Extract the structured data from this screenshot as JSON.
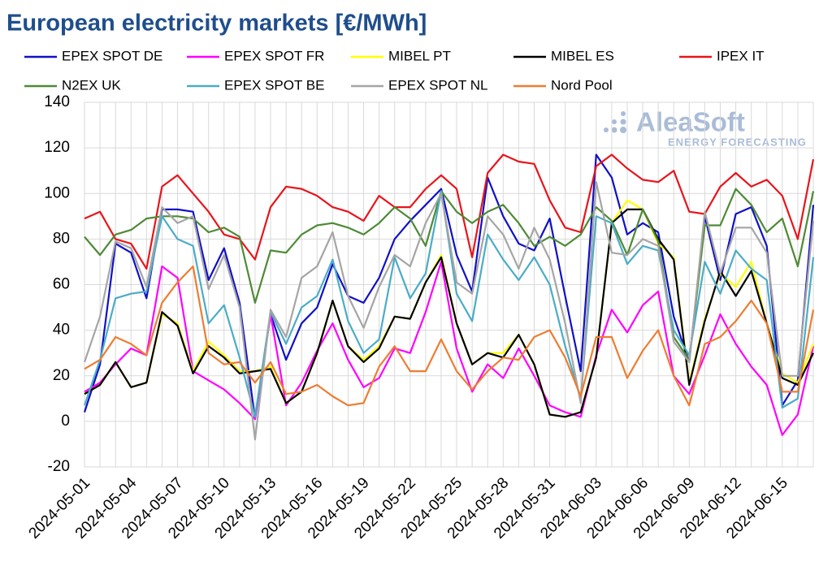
{
  "chart_data": {
    "type": "line",
    "title": "European electricity markets [€/MWh]",
    "watermark": "AleaSoft",
    "watermark_sub": "ENERGY FORECASTING",
    "categories": [
      "2024-05-01",
      null,
      null,
      "2024-05-04",
      null,
      null,
      "2024-05-07",
      null,
      null,
      "2024-05-10",
      null,
      null,
      "2024-05-13",
      null,
      null,
      "2024-05-16",
      null,
      null,
      "2024-05-19",
      null,
      null,
      "2024-05-22",
      null,
      null,
      "2024-05-25",
      null,
      null,
      "2024-05-28",
      null,
      null,
      "2024-05-31",
      null,
      null,
      "2024-06-03",
      null,
      null,
      "2024-06-06",
      null,
      null,
      "2024-06-09",
      null,
      null,
      "2024-06-12",
      null,
      null,
      "2024-06-15",
      null,
      null
    ],
    "ylim": [
      -20,
      140
    ],
    "yticks": [
      -20,
      0,
      20,
      40,
      60,
      80,
      100,
      120,
      140
    ],
    "grid": true,
    "series": [
      {
        "name": "EPEX SPOT DE",
        "color": "#1010c8",
        "values": [
          4,
          25,
          78,
          74,
          54,
          93,
          93,
          92,
          62,
          76,
          52,
          1,
          47,
          27,
          43,
          50,
          69,
          55,
          52,
          63,
          80,
          88,
          95,
          102,
          73,
          57,
          107,
          90,
          78,
          75,
          89,
          55,
          22,
          117,
          107,
          82,
          87,
          83,
          46,
          26,
          90,
          62,
          91,
          94,
          77,
          7,
          18,
          95
        ]
      },
      {
        "name": "EPEX SPOT FR",
        "color": "#ff00ff",
        "values": [
          13,
          17,
          25,
          32,
          29,
          68,
          63,
          22,
          18,
          14,
          8,
          1,
          47,
          7,
          17,
          31,
          43,
          27,
          15,
          19,
          32,
          30,
          48,
          70,
          32,
          13,
          25,
          19,
          32,
          20,
          7,
          4,
          2,
          29,
          49,
          39,
          51,
          57,
          20,
          12,
          29,
          47,
          34,
          24,
          16,
          -6,
          3,
          33
        ]
      },
      {
        "name": "MIBEL PT",
        "color": "#ffff00",
        "values": [
          12,
          16,
          26,
          15,
          17,
          47,
          43,
          22,
          35,
          29,
          22,
          22,
          24,
          8,
          13,
          30,
          53,
          33,
          27,
          33,
          46,
          45,
          61,
          73,
          43,
          25,
          30,
          30,
          38,
          25,
          3,
          2,
          4,
          28,
          87,
          97,
          93,
          78,
          72,
          17,
          45,
          65,
          59,
          70,
          43,
          21,
          17,
          34
        ]
      },
      {
        "name": "MIBEL ES",
        "color": "#000000",
        "values": [
          12,
          16,
          26,
          15,
          17,
          48,
          42,
          21,
          33,
          28,
          21,
          22,
          23,
          8,
          13,
          30,
          53,
          33,
          26,
          32,
          46,
          45,
          61,
          72,
          43,
          25,
          30,
          28,
          38,
          25,
          3,
          2,
          4,
          28,
          87,
          93,
          93,
          80,
          71,
          16,
          44,
          66,
          55,
          66,
          43,
          19,
          16,
          30
        ]
      },
      {
        "name": "IPEX IT",
        "color": "#e8141b",
        "values": [
          89,
          92,
          80,
          78,
          67,
          103,
          108,
          100,
          92,
          82,
          80,
          71,
          94,
          103,
          102,
          99,
          94,
          92,
          88,
          99,
          94,
          94,
          102,
          108,
          102,
          72,
          109,
          117,
          114,
          113,
          97,
          85,
          83,
          112,
          117,
          111,
          106,
          105,
          110,
          92,
          91,
          103,
          109,
          103,
          106,
          99,
          80,
          115
        ]
      },
      {
        "name": "N2EX UK",
        "color": "#4e8a35",
        "values": [
          81,
          73,
          82,
          84,
          89,
          90,
          90,
          89,
          83,
          85,
          81,
          52,
          75,
          74,
          82,
          86,
          87,
          85,
          82,
          87,
          94,
          89,
          77,
          101,
          92,
          87,
          92,
          95,
          87,
          77,
          81,
          77,
          82,
          94,
          88,
          73,
          93,
          79,
          37,
          27,
          86,
          86,
          102,
          95,
          83,
          89,
          68,
          101
        ]
      },
      {
        "name": "EPEX SPOT BE",
        "color": "#4bacc6",
        "values": [
          7,
          27,
          54,
          56,
          57,
          90,
          80,
          77,
          43,
          51,
          28,
          2,
          48,
          34,
          50,
          55,
          71,
          44,
          30,
          36,
          72,
          54,
          65,
          101,
          56,
          44,
          82,
          71,
          62,
          72,
          60,
          33,
          10,
          90,
          87,
          69,
          77,
          75,
          40,
          29,
          70,
          56,
          75,
          67,
          62,
          6,
          10,
          72
        ]
      },
      {
        "name": "EPEX SPOT NL",
        "color": "#a5a5a5",
        "values": [
          26,
          46,
          79,
          76,
          59,
          94,
          87,
          90,
          58,
          73,
          50,
          -8,
          49,
          37,
          63,
          68,
          83,
          55,
          41,
          59,
          73,
          68,
          87,
          100,
          61,
          56,
          90,
          82,
          67,
          85,
          71,
          43,
          8,
          105,
          74,
          73,
          80,
          77,
          35,
          26,
          92,
          65,
          85,
          85,
          74,
          20,
          20,
          88
        ]
      },
      {
        "name": "Nord Pool",
        "color": "#ed7d31",
        "values": [
          23,
          27,
          37,
          34,
          29,
          52,
          61,
          68,
          30,
          25,
          26,
          17,
          26,
          12,
          13,
          16,
          11,
          7,
          8,
          24,
          33,
          22,
          22,
          36,
          22,
          14,
          22,
          28,
          27,
          37,
          40,
          28,
          11,
          37,
          37,
          19,
          31,
          40,
          20,
          7,
          34,
          37,
          44,
          53,
          43,
          13,
          13,
          49
        ]
      }
    ]
  }
}
